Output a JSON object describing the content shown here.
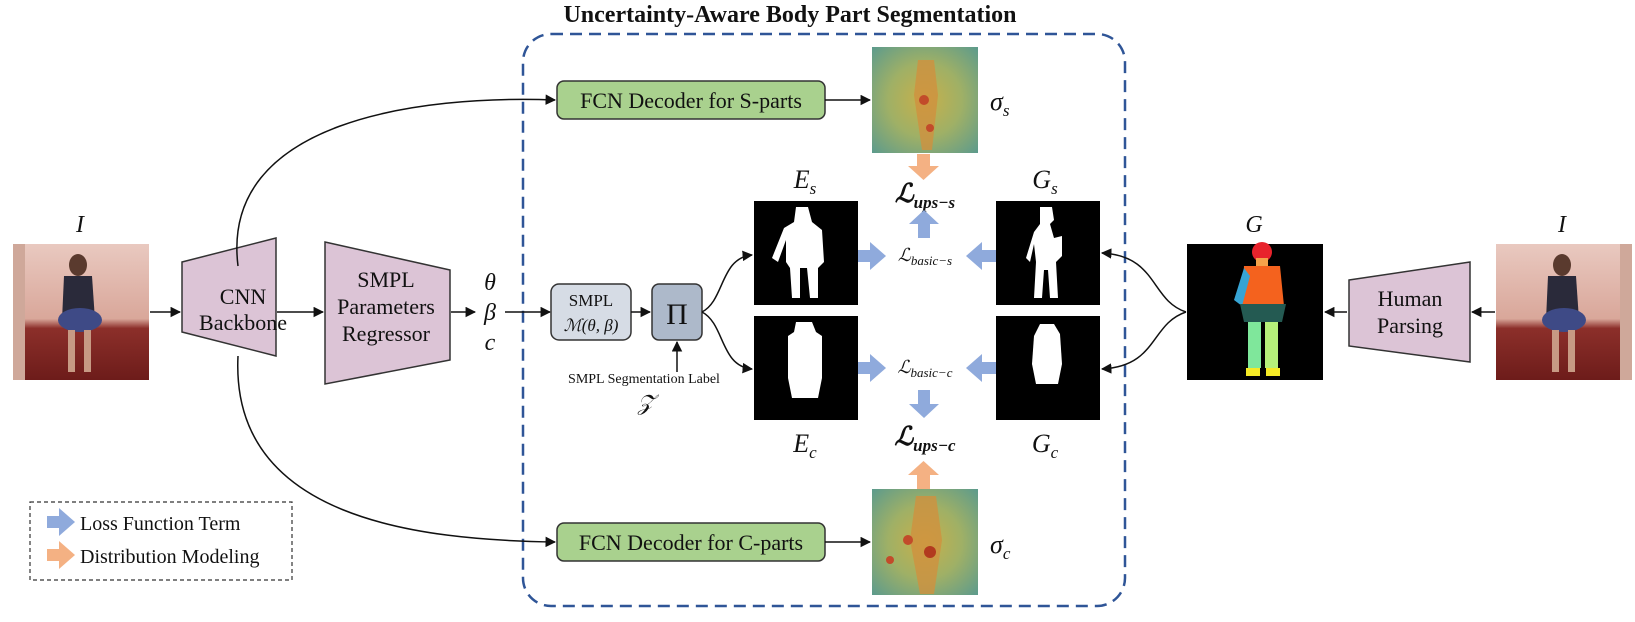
{
  "title": "Uncertainty-Aware Body Part Segmentation",
  "input_left_label": "I",
  "input_right_label": "I",
  "cnn_backbone": {
    "line1": "CNN",
    "line2": "Backbone"
  },
  "smpl_regressor": {
    "line1": "SMPL",
    "line2": "Parameters",
    "line3": "Regressor"
  },
  "params": {
    "theta": "θ",
    "beta": "β",
    "c": "c"
  },
  "smpl_model": {
    "line1": "SMPL",
    "line2": "ℳ(θ, β)"
  },
  "projection_symbol": "Π",
  "segmentation_label": {
    "line1": "SMPL Segmentation Label",
    "symbol": "𝒵"
  },
  "decoder_s": "FCN Decoder for S-parts",
  "decoder_c": "FCN Decoder for C-parts",
  "sigma_s": "σ",
  "sigma_s_sub": "s",
  "sigma_c": "σ",
  "sigma_c_sub": "c",
  "E_s": {
    "main": "E",
    "sub": "s"
  },
  "E_c": {
    "main": "E",
    "sub": "c"
  },
  "G_s": {
    "main": "G",
    "sub": "s"
  },
  "G_c": {
    "main": "G",
    "sub": "c"
  },
  "G": "G",
  "loss_ups_s": {
    "main": "ℒ",
    "sub": "ups−s"
  },
  "loss_ups_c": {
    "main": "ℒ",
    "sub": "ups−c"
  },
  "loss_basic_s": {
    "main": "ℒ",
    "sub": "basic−s"
  },
  "loss_basic_c": {
    "main": "ℒ",
    "sub": "basic−c"
  },
  "human_parsing": {
    "line1": "Human",
    "line2": "Parsing"
  },
  "legend": {
    "loss_term": "Loss Function Term",
    "distribution": "Distribution Modeling"
  },
  "colors": {
    "trapezoid_fill": "#dcc4d6",
    "decoder_fill": "#a9d18e",
    "smpl_fill": "#d6dce5",
    "projection_fill": "#adb9ca",
    "dash_border": "#2f5597",
    "blue_arrow": "#8faadc",
    "orange_arrow": "#f4b183"
  }
}
